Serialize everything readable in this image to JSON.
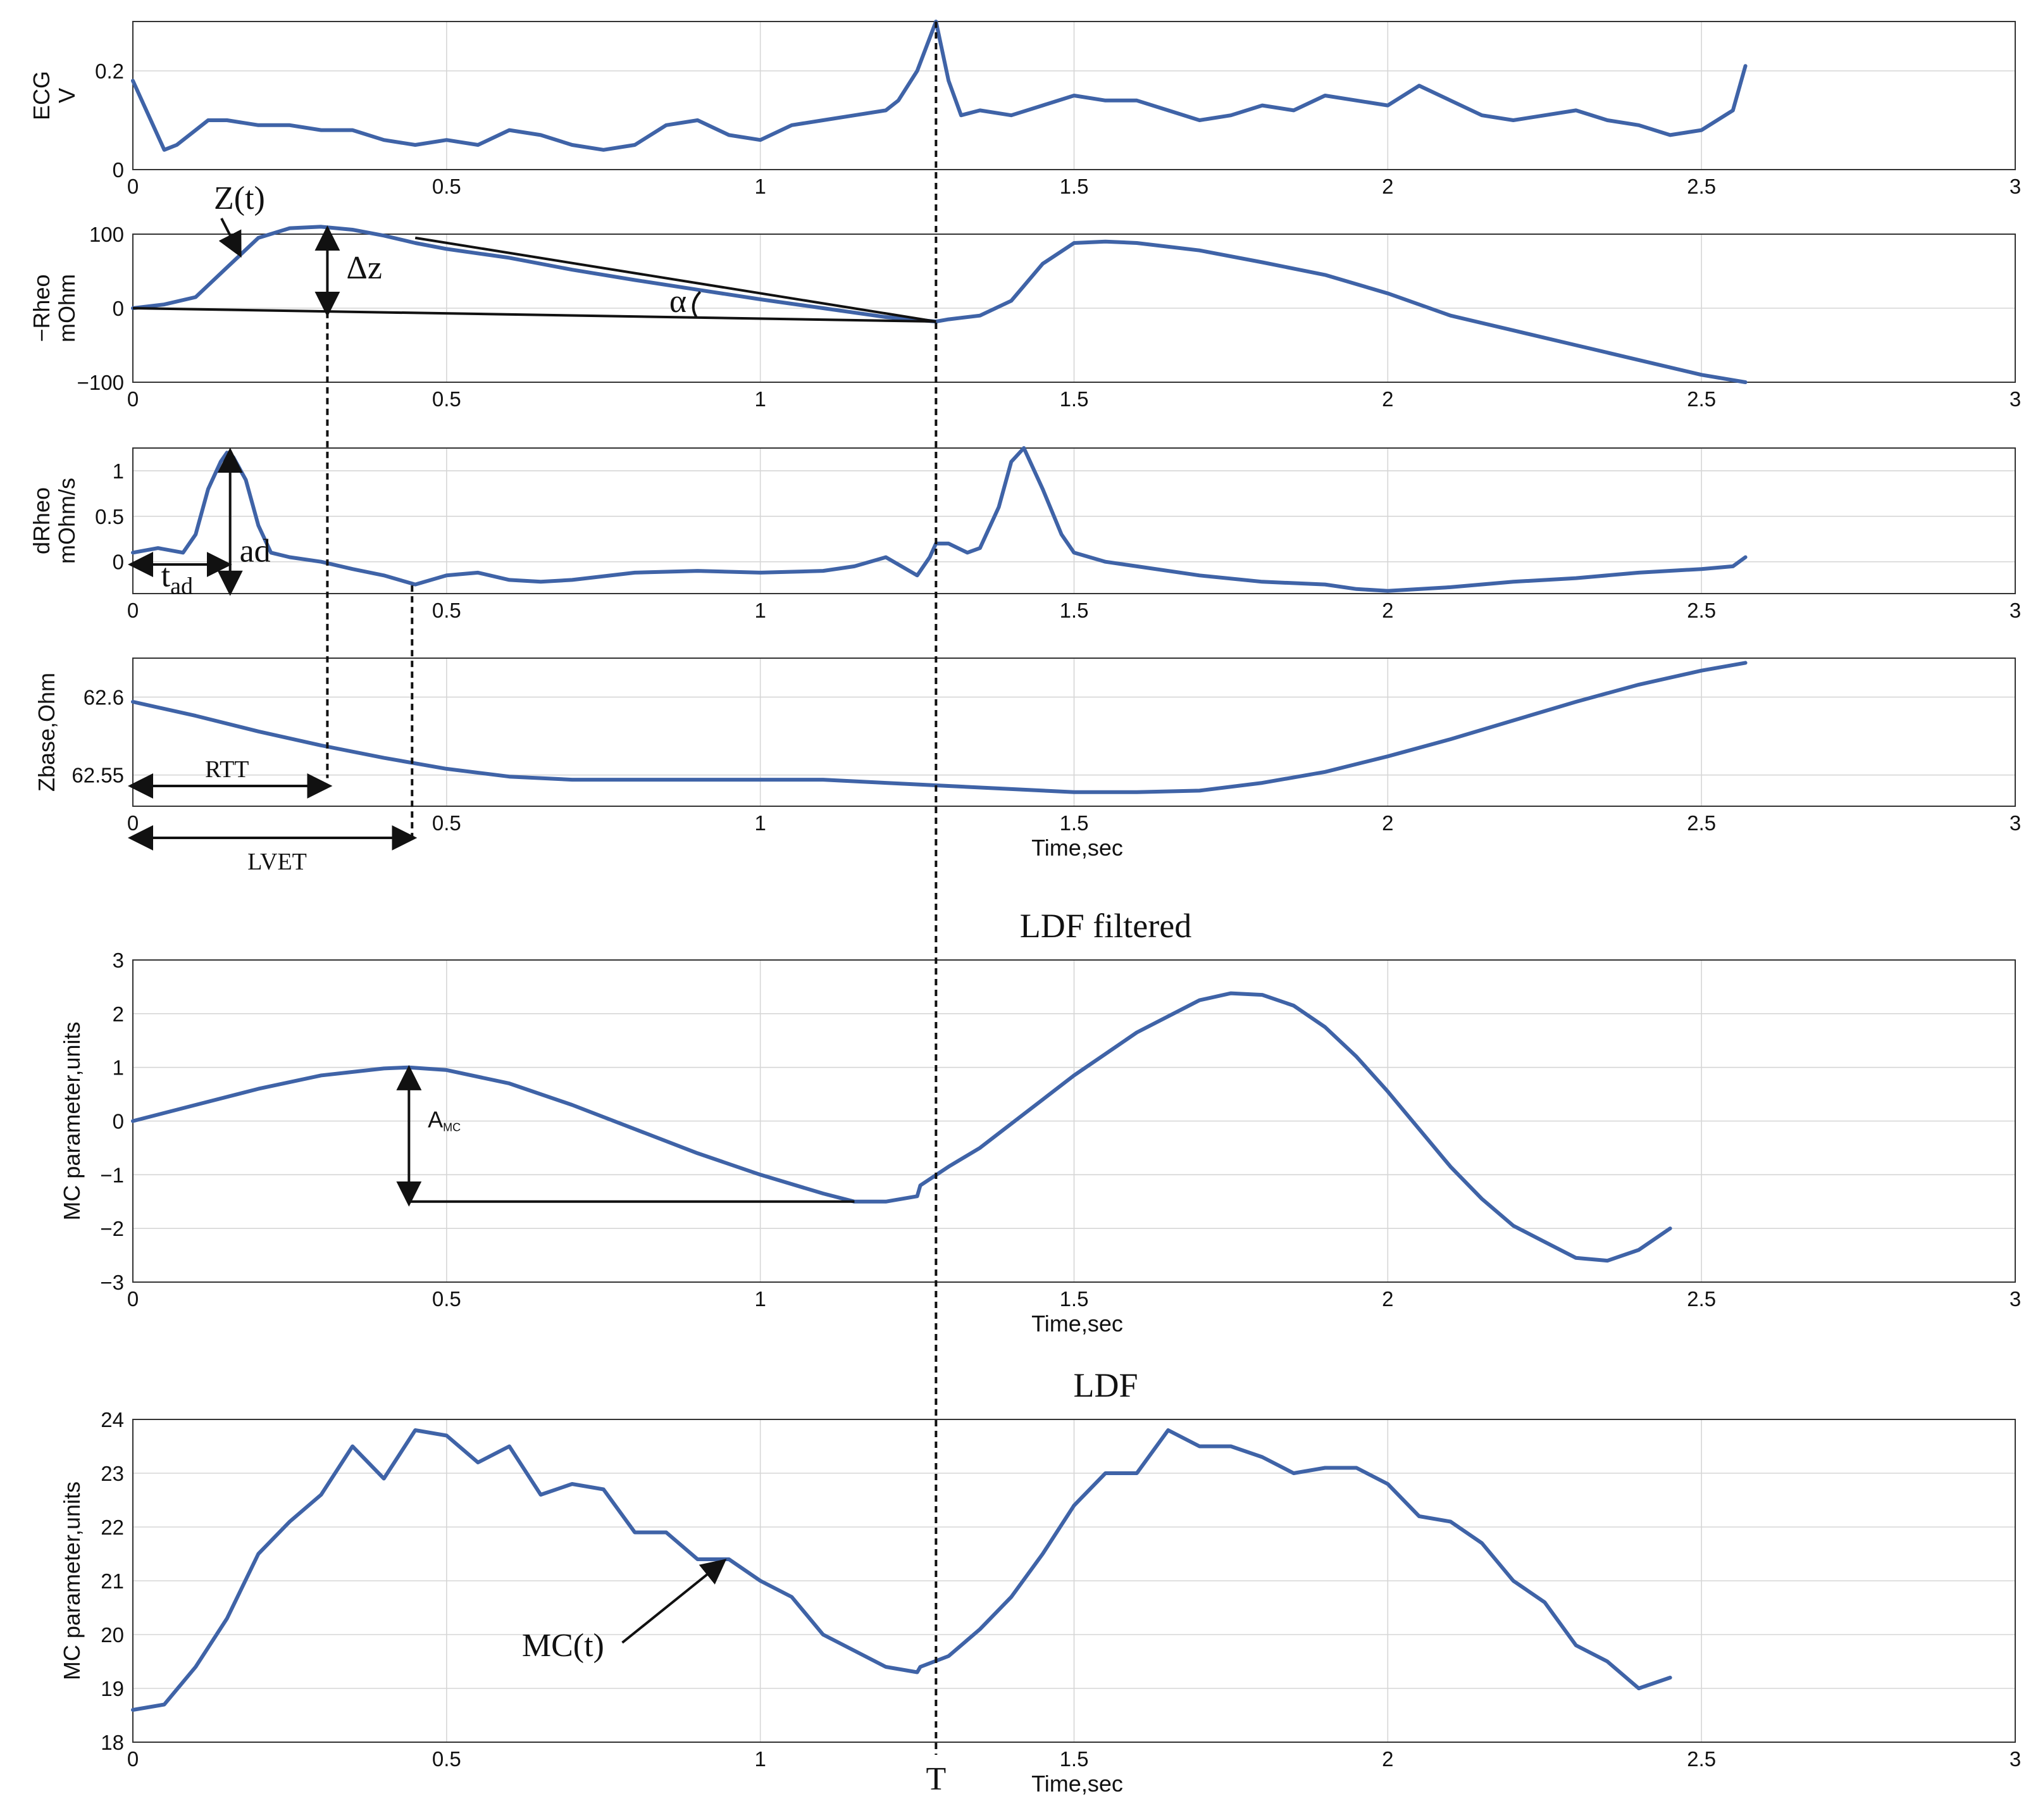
{
  "chart_data": [
    {
      "type": "line",
      "id": "ecg",
      "ylabel": [
        "ECG",
        "V"
      ],
      "xlim": [
        0,
        3
      ],
      "ylim": [
        0,
        0.3
      ],
      "xticks": [
        "0",
        "0.5",
        "1",
        "1.5",
        "2",
        "2.5",
        "3"
      ],
      "yticks": [
        "0",
        "0.2"
      ],
      "ytick_values": [
        0,
        0.2
      ],
      "x": [
        0,
        0.05,
        0.07,
        0.1,
        0.12,
        0.15,
        0.2,
        0.25,
        0.3,
        0.35,
        0.4,
        0.45,
        0.5,
        0.55,
        0.6,
        0.65,
        0.7,
        0.75,
        0.8,
        0.85,
        0.9,
        0.95,
        1.0,
        1.05,
        1.1,
        1.15,
        1.2,
        1.22,
        1.25,
        1.28,
        1.3,
        1.32,
        1.35,
        1.4,
        1.45,
        1.5,
        1.55,
        1.6,
        1.65,
        1.7,
        1.75,
        1.8,
        1.85,
        1.9,
        1.95,
        2.0,
        2.05,
        2.1,
        2.15,
        2.2,
        2.25,
        2.3,
        2.35,
        2.4,
        2.45,
        2.5,
        2.55,
        2.57
      ],
      "y": [
        0.18,
        0.04,
        0.05,
        0.08,
        0.1,
        0.1,
        0.09,
        0.09,
        0.08,
        0.08,
        0.06,
        0.05,
        0.06,
        0.05,
        0.08,
        0.07,
        0.05,
        0.04,
        0.05,
        0.09,
        0.1,
        0.07,
        0.06,
        0.09,
        0.1,
        0.11,
        0.12,
        0.14,
        0.2,
        0.3,
        0.18,
        0.11,
        0.12,
        0.11,
        0.13,
        0.15,
        0.14,
        0.14,
        0.12,
        0.1,
        0.11,
        0.13,
        0.12,
        0.15,
        0.14,
        0.13,
        0.17,
        0.14,
        0.11,
        0.1,
        0.11,
        0.12,
        0.1,
        0.09,
        0.07,
        0.08,
        0.12,
        0.21
      ],
      "x_range_note": ""
    },
    {
      "type": "line",
      "id": "rheo",
      "ylabel": [
        "−Rheo",
        "mOhm"
      ],
      "xlim": [
        0,
        3
      ],
      "ylim": [
        -100,
        100
      ],
      "xticks": [
        "0",
        "0.5",
        "1",
        "1.5",
        "2",
        "2.5",
        "3"
      ],
      "yticks": [
        "−100",
        "0",
        "100"
      ],
      "ytick_values": [
        -100,
        0,
        100
      ],
      "x": [
        0,
        0.05,
        0.1,
        0.15,
        0.2,
        0.25,
        0.3,
        0.35,
        0.4,
        0.45,
        0.5,
        0.6,
        0.7,
        0.8,
        0.9,
        1.0,
        1.1,
        1.2,
        1.28,
        1.3,
        1.35,
        1.4,
        1.45,
        1.5,
        1.55,
        1.6,
        1.7,
        1.8,
        1.9,
        2.0,
        2.1,
        2.2,
        2.3,
        2.4,
        2.5,
        2.57
      ],
      "y": [
        0,
        5,
        15,
        55,
        95,
        108,
        110,
        106,
        98,
        88,
        80,
        68,
        52,
        38,
        25,
        12,
        0,
        -12,
        -18,
        -15,
        -10,
        10,
        60,
        88,
        90,
        88,
        78,
        62,
        45,
        20,
        -10,
        -30,
        -50,
        -70,
        -90,
        -100
      ],
      "annotations": {
        "z_label": "Z(t)",
        "dz_label": "Δz",
        "alpha_label": "α"
      }
    },
    {
      "type": "line",
      "id": "drheo",
      "ylabel": [
        "dRheo",
        "mOhm/s"
      ],
      "xlim": [
        0,
        3
      ],
      "ylim": [
        -0.35,
        1.25
      ],
      "xticks": [
        "0",
        "0.5",
        "1",
        "1.5",
        "2",
        "2.5",
        "3"
      ],
      "yticks": [
        "0",
        "0.5",
        "1"
      ],
      "ytick_values": [
        0,
        0.5,
        1
      ],
      "x": [
        0,
        0.04,
        0.08,
        0.1,
        0.12,
        0.14,
        0.15,
        0.16,
        0.18,
        0.2,
        0.22,
        0.25,
        0.3,
        0.35,
        0.4,
        0.45,
        0.5,
        0.55,
        0.6,
        0.65,
        0.7,
        0.8,
        0.9,
        1.0,
        1.1,
        1.15,
        1.2,
        1.25,
        1.27,
        1.28,
        1.3,
        1.33,
        1.35,
        1.38,
        1.4,
        1.42,
        1.45,
        1.48,
        1.5,
        1.55,
        1.6,
        1.7,
        1.8,
        1.9,
        1.95,
        2.0,
        2.1,
        2.2,
        2.3,
        2.4,
        2.5,
        2.55,
        2.57
      ],
      "y": [
        0.1,
        0.15,
        0.1,
        0.3,
        0.8,
        1.1,
        1.2,
        1.15,
        0.9,
        0.4,
        0.1,
        0.05,
        0,
        -0.08,
        -0.15,
        -0.25,
        -0.15,
        -0.12,
        -0.2,
        -0.22,
        -0.2,
        -0.12,
        -0.1,
        -0.12,
        -0.1,
        -0.05,
        0.05,
        -0.15,
        0.05,
        0.2,
        0.2,
        0.1,
        0.15,
        0.6,
        1.1,
        1.25,
        0.8,
        0.3,
        0.1,
        0,
        -0.05,
        -0.15,
        -0.22,
        -0.25,
        -0.3,
        -0.32,
        -0.28,
        -0.22,
        -0.18,
        -0.12,
        -0.08,
        -0.05,
        0.05
      ],
      "annotations": {
        "ad_label": "ad",
        "tad_label": "t",
        "tad_sub": "ad"
      }
    },
    {
      "type": "line",
      "id": "zbase",
      "ylabel": [
        "Zbase,Ohm"
      ],
      "xlabel": "Time,sec",
      "xlim": [
        0,
        3
      ],
      "ylim": [
        62.53,
        62.625
      ],
      "xticks": [
        "0",
        "0.5",
        "1",
        "1.5",
        "2",
        "2.5",
        "3"
      ],
      "yticks": [
        "62.55",
        "62.6"
      ],
      "ytick_values": [
        62.55,
        62.6
      ],
      "x": [
        0,
        0.1,
        0.2,
        0.3,
        0.4,
        0.5,
        0.6,
        0.7,
        0.8,
        0.9,
        1.0,
        1.1,
        1.2,
        1.3,
        1.4,
        1.5,
        1.6,
        1.7,
        1.8,
        1.9,
        2.0,
        2.1,
        2.2,
        2.3,
        2.4,
        2.5,
        2.57
      ],
      "y": [
        62.597,
        62.588,
        62.578,
        62.569,
        62.561,
        62.554,
        62.549,
        62.547,
        62.547,
        62.547,
        62.547,
        62.547,
        62.545,
        62.543,
        62.541,
        62.539,
        62.539,
        62.54,
        62.545,
        62.552,
        62.562,
        62.573,
        62.585,
        62.597,
        62.608,
        62.617,
        62.622
      ],
      "annotations": {
        "rtt_label": "RTT",
        "lvet_label": "LVET"
      }
    },
    {
      "type": "line",
      "id": "ldf_filtered",
      "title": "LDF filtered",
      "ylabel": [
        "MC parameter,units"
      ],
      "xlabel": "Time,sec",
      "xlim": [
        0,
        3
      ],
      "ylim": [
        -3,
        3
      ],
      "xticks": [
        "0",
        "0.5",
        "1",
        "1.5",
        "2",
        "2.5",
        "3"
      ],
      "yticks": [
        "−3",
        "−2",
        "−1",
        "0",
        "1",
        "2",
        "3"
      ],
      "ytick_values": [
        -3,
        -2,
        -1,
        0,
        1,
        2,
        3
      ],
      "x": [
        0,
        0.1,
        0.2,
        0.3,
        0.4,
        0.44,
        0.5,
        0.6,
        0.7,
        0.8,
        0.9,
        1.0,
        1.1,
        1.15,
        1.2,
        1.25,
        1.255,
        1.3,
        1.35,
        1.4,
        1.45,
        1.5,
        1.55,
        1.6,
        1.65,
        1.7,
        1.75,
        1.8,
        1.85,
        1.9,
        1.95,
        2.0,
        2.05,
        2.1,
        2.15,
        2.2,
        2.25,
        2.3,
        2.35,
        2.4,
        2.45
      ],
      "y": [
        0,
        0.3,
        0.6,
        0.85,
        0.98,
        1.0,
        0.95,
        0.7,
        0.3,
        -0.15,
        -0.6,
        -1.0,
        -1.35,
        -1.5,
        -1.5,
        -1.4,
        -1.2,
        -0.85,
        -0.5,
        -0.05,
        0.4,
        0.85,
        1.25,
        1.65,
        1.95,
        2.25,
        2.38,
        2.35,
        2.15,
        1.75,
        1.2,
        0.55,
        -0.15,
        -0.85,
        -1.45,
        -1.95,
        -2.25,
        -2.55,
        -2.6,
        -2.4,
        -2.0
      ],
      "x_tail_note": "",
      "annotations": {
        "amc_label": "A",
        "amc_sub": "MC"
      }
    },
    {
      "type": "line",
      "id": "ldf",
      "title": "LDF",
      "ylabel": [
        "MC parameter,units"
      ],
      "xlabel": "Time,sec",
      "xlim": [
        0,
        3
      ],
      "ylim": [
        18,
        24
      ],
      "xticks": [
        "0",
        "0.5",
        "1",
        "1.5",
        "2",
        "2.5",
        "3"
      ],
      "yticks": [
        "18",
        "19",
        "20",
        "21",
        "22",
        "23",
        "24"
      ],
      "ytick_values": [
        18,
        19,
        20,
        21,
        22,
        23,
        24
      ],
      "x": [
        0,
        0.05,
        0.1,
        0.15,
        0.2,
        0.25,
        0.3,
        0.35,
        0.4,
        0.45,
        0.5,
        0.55,
        0.6,
        0.65,
        0.7,
        0.75,
        0.8,
        0.85,
        0.9,
        0.95,
        1.0,
        1.05,
        1.1,
        1.15,
        1.2,
        1.25,
        1.255,
        1.3,
        1.35,
        1.4,
        1.45,
        1.5,
        1.55,
        1.6,
        1.65,
        1.7,
        1.75,
        1.8,
        1.85,
        1.9,
        1.95,
        2.0,
        2.05,
        2.1,
        2.15,
        2.2,
        2.25,
        2.3,
        2.35,
        2.4,
        2.45
      ],
      "y": [
        18.6,
        18.7,
        19.4,
        20.3,
        21.5,
        22.1,
        22.6,
        23.5,
        22.9,
        23.8,
        23.7,
        23.2,
        23.5,
        22.6,
        22.8,
        22.7,
        21.9,
        21.9,
        21.4,
        21.4,
        21.0,
        20.7,
        20.0,
        19.7,
        19.4,
        19.3,
        19.4,
        19.6,
        20.1,
        20.7,
        21.5,
        22.4,
        23.0,
        23.0,
        23.8,
        23.5,
        23.5,
        23.3,
        23.0,
        23.1,
        23.1,
        22.8,
        22.2,
        22.1,
        21.7,
        21.0,
        20.6,
        19.8,
        19.5,
        19.0,
        19.2
      ],
      "annotations": {
        "mc_label": "MC(t)",
        "t_label": "T"
      }
    }
  ],
  "marker_time": 1.28
}
